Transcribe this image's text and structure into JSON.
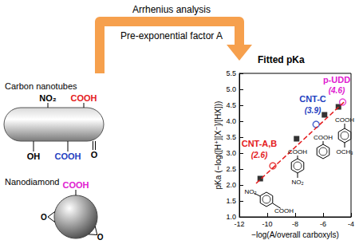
{
  "chart_data": {
    "type": "scatter",
    "title": "Fitted pKa",
    "x_label": "−log(A/overall carboxyls)",
    "y_label": "pKa (−log([H⁺][X⁻]/[HX]))",
    "xlim": [
      -12,
      -4
    ],
    "xticks": [
      -12,
      -10,
      -8,
      -6,
      -4
    ],
    "ylim": [
      1,
      5.5
    ],
    "yticks": [
      {
        "value": 1,
        "label": "1.0"
      },
      {
        "value": 1.5,
        "label": "1.5"
      },
      {
        "value": 2,
        "label": "2.0"
      },
      {
        "value": 2.5,
        "label": "2.5"
      },
      {
        "value": 3,
        "label": "3.0"
      },
      {
        "value": 3.5,
        "label": "3.5"
      },
      {
        "value": 4,
        "label": "4.0"
      },
      {
        "value": 4.5,
        "label": "4.5"
      },
      {
        "value": 5,
        "label": "5.0"
      },
      {
        "value": 5.5,
        "label": "5.5"
      }
    ],
    "grid": false,
    "series": [
      {
        "type": "line",
        "line_style": "dashed",
        "color": "#e41a1c",
        "x": [
          -10.8,
          -4.5
        ],
        "values": [
          2.05,
          4.6
        ]
      },
      {
        "type": "scatter",
        "marker": "square",
        "color": "#000000",
        "x": [
          -10.5,
          -7.9,
          -5.9,
          -4.9
        ],
        "values": [
          2.2,
          3.45,
          4.2,
          4.45
        ]
      },
      {
        "type": "scatter",
        "marker": "open_circle",
        "colors": [
          "#e41a1c",
          "#1f3fbf",
          "#e020d0"
        ],
        "x": [
          -9.6,
          -6.5,
          -4.6
        ],
        "values": [
          2.6,
          3.9,
          4.6
        ]
      }
    ],
    "annotations": [
      {
        "text": "CNT-A,B",
        "color": "#e41a1c"
      },
      {
        "text": "(2.6)",
        "color": "#e41a1c"
      },
      {
        "text": "CNT-C",
        "color": "#1f3fbf"
      },
      {
        "text": "(3.9)",
        "color": "#1f3fbf"
      },
      {
        "text": "p-UDD",
        "color": "#e020d0"
      },
      {
        "text": "(4.6)",
        "color": "#e020d0"
      }
    ],
    "structures": [
      [
        "NO₂",
        "COOH"
      ],
      [
        "COOH",
        "NO₂"
      ],
      [
        "COOH"
      ],
      [
        "COOH",
        "OCH₃"
      ]
    ]
  },
  "diagram": {
    "arrow": {
      "top": "Arrhenius analysis",
      "bottom": "Pre-exponential factor A",
      "color": "#f6a04d"
    },
    "carbon_nanotubes": {
      "label": "Carbon nanotubes",
      "groups": [
        {
          "text": "NO₂",
          "color": "#000000"
        },
        {
          "text": "COOH",
          "color": "#e41a1c"
        },
        {
          "text": "OH",
          "color": "#000000"
        },
        {
          "text": "COOH",
          "color": "#1f3fbf"
        },
        {
          "text": "O",
          "color": "#000000"
        }
      ]
    },
    "nanodiamond": {
      "label": "Nanodiamond",
      "groups": [
        {
          "text": "COOH",
          "color": "#e020d0"
        },
        {
          "text": "O",
          "color": "#000000"
        },
        {
          "text": "O",
          "color": "#000000"
        }
      ]
    }
  }
}
